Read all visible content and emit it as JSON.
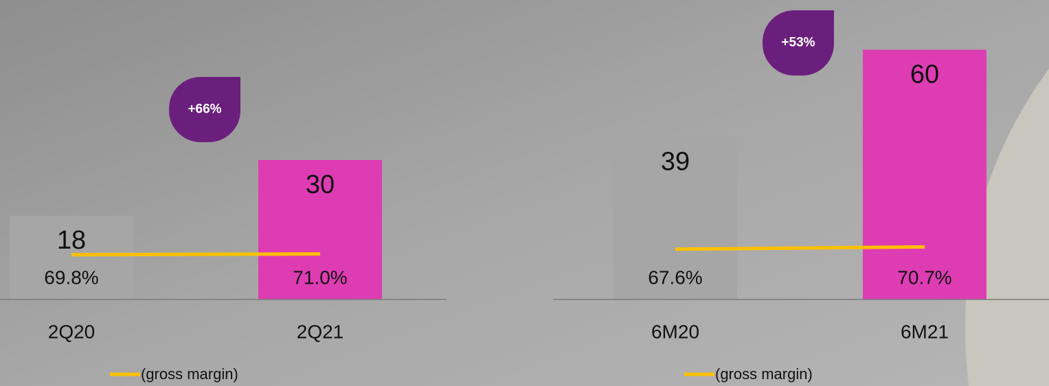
{
  "chart_data": [
    {
      "type": "bar",
      "categories": [
        "2Q20",
        "2Q21"
      ],
      "series": [
        {
          "values": [
            18,
            30
          ],
          "colors": [
            "#a6a6a6",
            "#de3cb3"
          ]
        },
        {
          "name": "(gross margin)",
          "type": "line",
          "axis": "y2",
          "color": "#ffc000",
          "values": [
            69.8,
            71.0
          ],
          "value_labels": [
            "69.8%",
            "71.0%"
          ]
        }
      ],
      "ylim": [
        0,
        60
      ],
      "y2lim": [
        0,
        435
      ],
      "annotation": "+66%"
    },
    {
      "type": "bar",
      "categories": [
        "6M20",
        "6M21"
      ],
      "series": [
        {
          "values": [
            39,
            60
          ],
          "colors": [
            "#a6a6a6",
            "#de3cb3"
          ]
        },
        {
          "name": "(gross margin)",
          "type": "line",
          "axis": "y2",
          "color": "#ffc000",
          "values": [
            67.6,
            70.7
          ],
          "value_labels": [
            "67.6%",
            "70.7%"
          ]
        }
      ],
      "ylim": [
        0,
        67
      ],
      "y2lim": [
        0,
        375
      ],
      "annotation": "+53%"
    }
  ]
}
